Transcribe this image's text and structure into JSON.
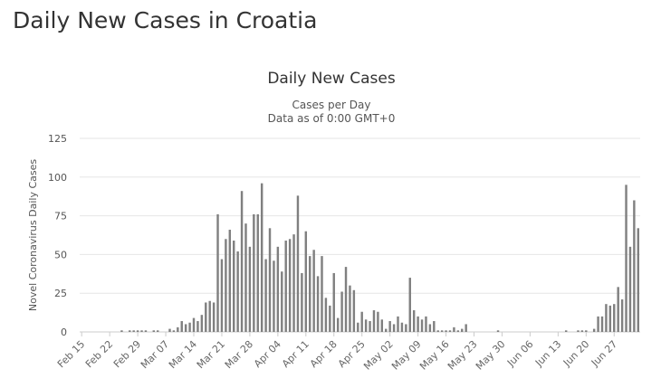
{
  "page": {
    "title": "Daily New Cases in Croatia"
  },
  "chart_data": {
    "type": "bar",
    "title": "Daily New Cases",
    "subtitle": "Cases per Day",
    "subtitle2": "Data as of 0:00 GMT+0",
    "ylabel": "Novel Coronavirus Daily Cases",
    "xlabel": "",
    "ylim": [
      0,
      125
    ],
    "yticks": [
      0,
      25,
      50,
      75,
      100,
      125
    ],
    "grid": true,
    "bar_color": "#808080",
    "x_tick_labels": [
      "Feb 15",
      "Feb 22",
      "Feb 29",
      "Mar 07",
      "Mar 14",
      "Mar 21",
      "Mar 28",
      "Apr 04",
      "Apr 11",
      "Apr 18",
      "Apr 25",
      "May 02",
      "May 09",
      "May 16",
      "May 23",
      "May 30",
      "Jun 06",
      "Jun 13",
      "Jun 20",
      "Jun 27"
    ],
    "series": [
      {
        "start_date": "Feb 15",
        "values": [
          0,
          0,
          0,
          0,
          0,
          0,
          0,
          0,
          0,
          0,
          1,
          0,
          1,
          1,
          1,
          1,
          1,
          0,
          1,
          1,
          0,
          0,
          2,
          1,
          3,
          7,
          5,
          6,
          9,
          7,
          11,
          19,
          20,
          19,
          76,
          47,
          60,
          66,
          59,
          52,
          91,
          70,
          55,
          76,
          76,
          96,
          47,
          67,
          46,
          55,
          39,
          59,
          60,
          63,
          88,
          38,
          65,
          49,
          53,
          36,
          49,
          22,
          17,
          38,
          9,
          26,
          42,
          30,
          27,
          6,
          13,
          8,
          7,
          14,
          13,
          8,
          2,
          7,
          5,
          10,
          6,
          5,
          35,
          14,
          10,
          8,
          10,
          5,
          7,
          1,
          1,
          1,
          1,
          3,
          1,
          2,
          5,
          0,
          0,
          0,
          0,
          0,
          0,
          0,
          1,
          0,
          0,
          0,
          0,
          0,
          0,
          0,
          0,
          0,
          0,
          0,
          0,
          0,
          0,
          0,
          0,
          1,
          0,
          0,
          1,
          1,
          1,
          0,
          2,
          10,
          10,
          18,
          17,
          18,
          29,
          21,
          95,
          55,
          85,
          67
        ]
      }
    ]
  }
}
